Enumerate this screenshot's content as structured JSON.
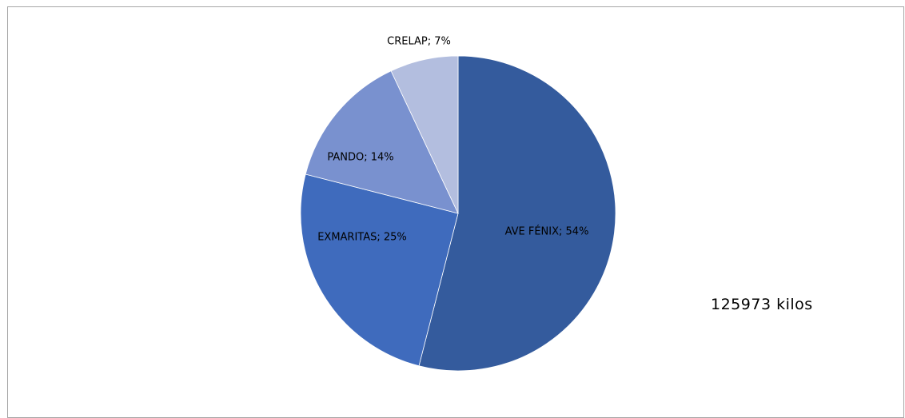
{
  "chart_data": {
    "type": "pie",
    "title": "",
    "slices": [
      {
        "label": "AVE FÉNIX",
        "value": 54,
        "display": "AVE FÉNIX; 54%",
        "color": "#345b9d"
      },
      {
        "label": "EXMARITAS",
        "value": 25,
        "display": "EXMARITAS; 25%",
        "color": "#3f6bbd"
      },
      {
        "label": "PANDO",
        "value": 14,
        "display": "PANDO; 14%",
        "color": "#7991cf"
      },
      {
        "label": "CRELAP",
        "value": 7,
        "display": "CRELAP; 7%",
        "color": "#b3bedf"
      }
    ],
    "legend": "none",
    "annotation": "125973 kilos"
  }
}
